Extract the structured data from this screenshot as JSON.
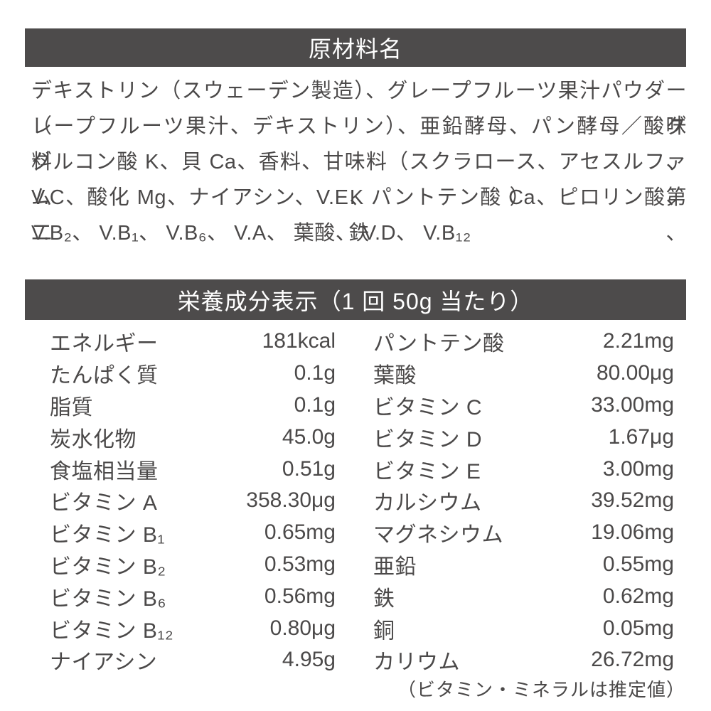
{
  "colors": {
    "bar_bg": "#4d4b4b",
    "bar_text": "#ffffff",
    "body_text": "#4b4949",
    "page_bg": "#ffffff"
  },
  "ingredients": {
    "title": "原材料名",
    "lines": [
      "デキストリン（スウェーデン製造）、グレープフルーツ果汁パウダー（グ",
      "レープフルーツ果汁、デキストリン）、亜鉛酵母、パン酵母／酸味料、",
      "グルコン酸 K、貝 Ca、香料、甘味料（スクラロース、アセスルファム K）、",
      "V.C、酸化 Mg、ナイアシン、V.E、パントテン酸 Ca、ピロリン酸第二鉄、",
      "V.B₂、 V.B₁、 V.B₆、 V.A、 葉酸、 V.D、 V.B₁₂"
    ]
  },
  "nutrition": {
    "title": "栄養成分表示（1 回 50g 当たり）",
    "left_rows": [
      {
        "label": "エネルギー",
        "value": "181kcal"
      },
      {
        "label": "たんぱく質",
        "value": "0.1g"
      },
      {
        "label": "脂質",
        "value": "0.1g"
      },
      {
        "label": "炭水化物",
        "value": "45.0g"
      },
      {
        "label": "食塩相当量",
        "value": "0.51g"
      },
      {
        "label": "ビタミン A",
        "value": "358.30μg"
      },
      {
        "label": "ビタミン B₁",
        "value": "0.65mg"
      },
      {
        "label": "ビタミン B₂",
        "value": "0.53mg"
      },
      {
        "label": "ビタミン B₆",
        "value": "0.56mg"
      },
      {
        "label": "ビタミン B₁₂",
        "value": "0.80μg"
      },
      {
        "label": "ナイアシン",
        "value": "4.95g"
      }
    ],
    "right_rows": [
      {
        "label": "パントテン酸",
        "value": "2.21mg"
      },
      {
        "label": "葉酸",
        "value": "80.00μg"
      },
      {
        "label": "ビタミン C",
        "value": "33.00mg"
      },
      {
        "label": "ビタミン D",
        "value": "1.67μg"
      },
      {
        "label": "ビタミン E",
        "value": "3.00mg"
      },
      {
        "label": "カルシウム",
        "value": "39.52mg"
      },
      {
        "label": "マグネシウム",
        "value": "19.06mg"
      },
      {
        "label": "亜鉛",
        "value": "0.55mg"
      },
      {
        "label": "鉄",
        "value": "0.62mg"
      },
      {
        "label": "銅",
        "value": "0.05mg"
      },
      {
        "label": "カリウム",
        "value": "26.72mg"
      }
    ],
    "note": "（ビタミン・ミネラルは推定値）"
  }
}
